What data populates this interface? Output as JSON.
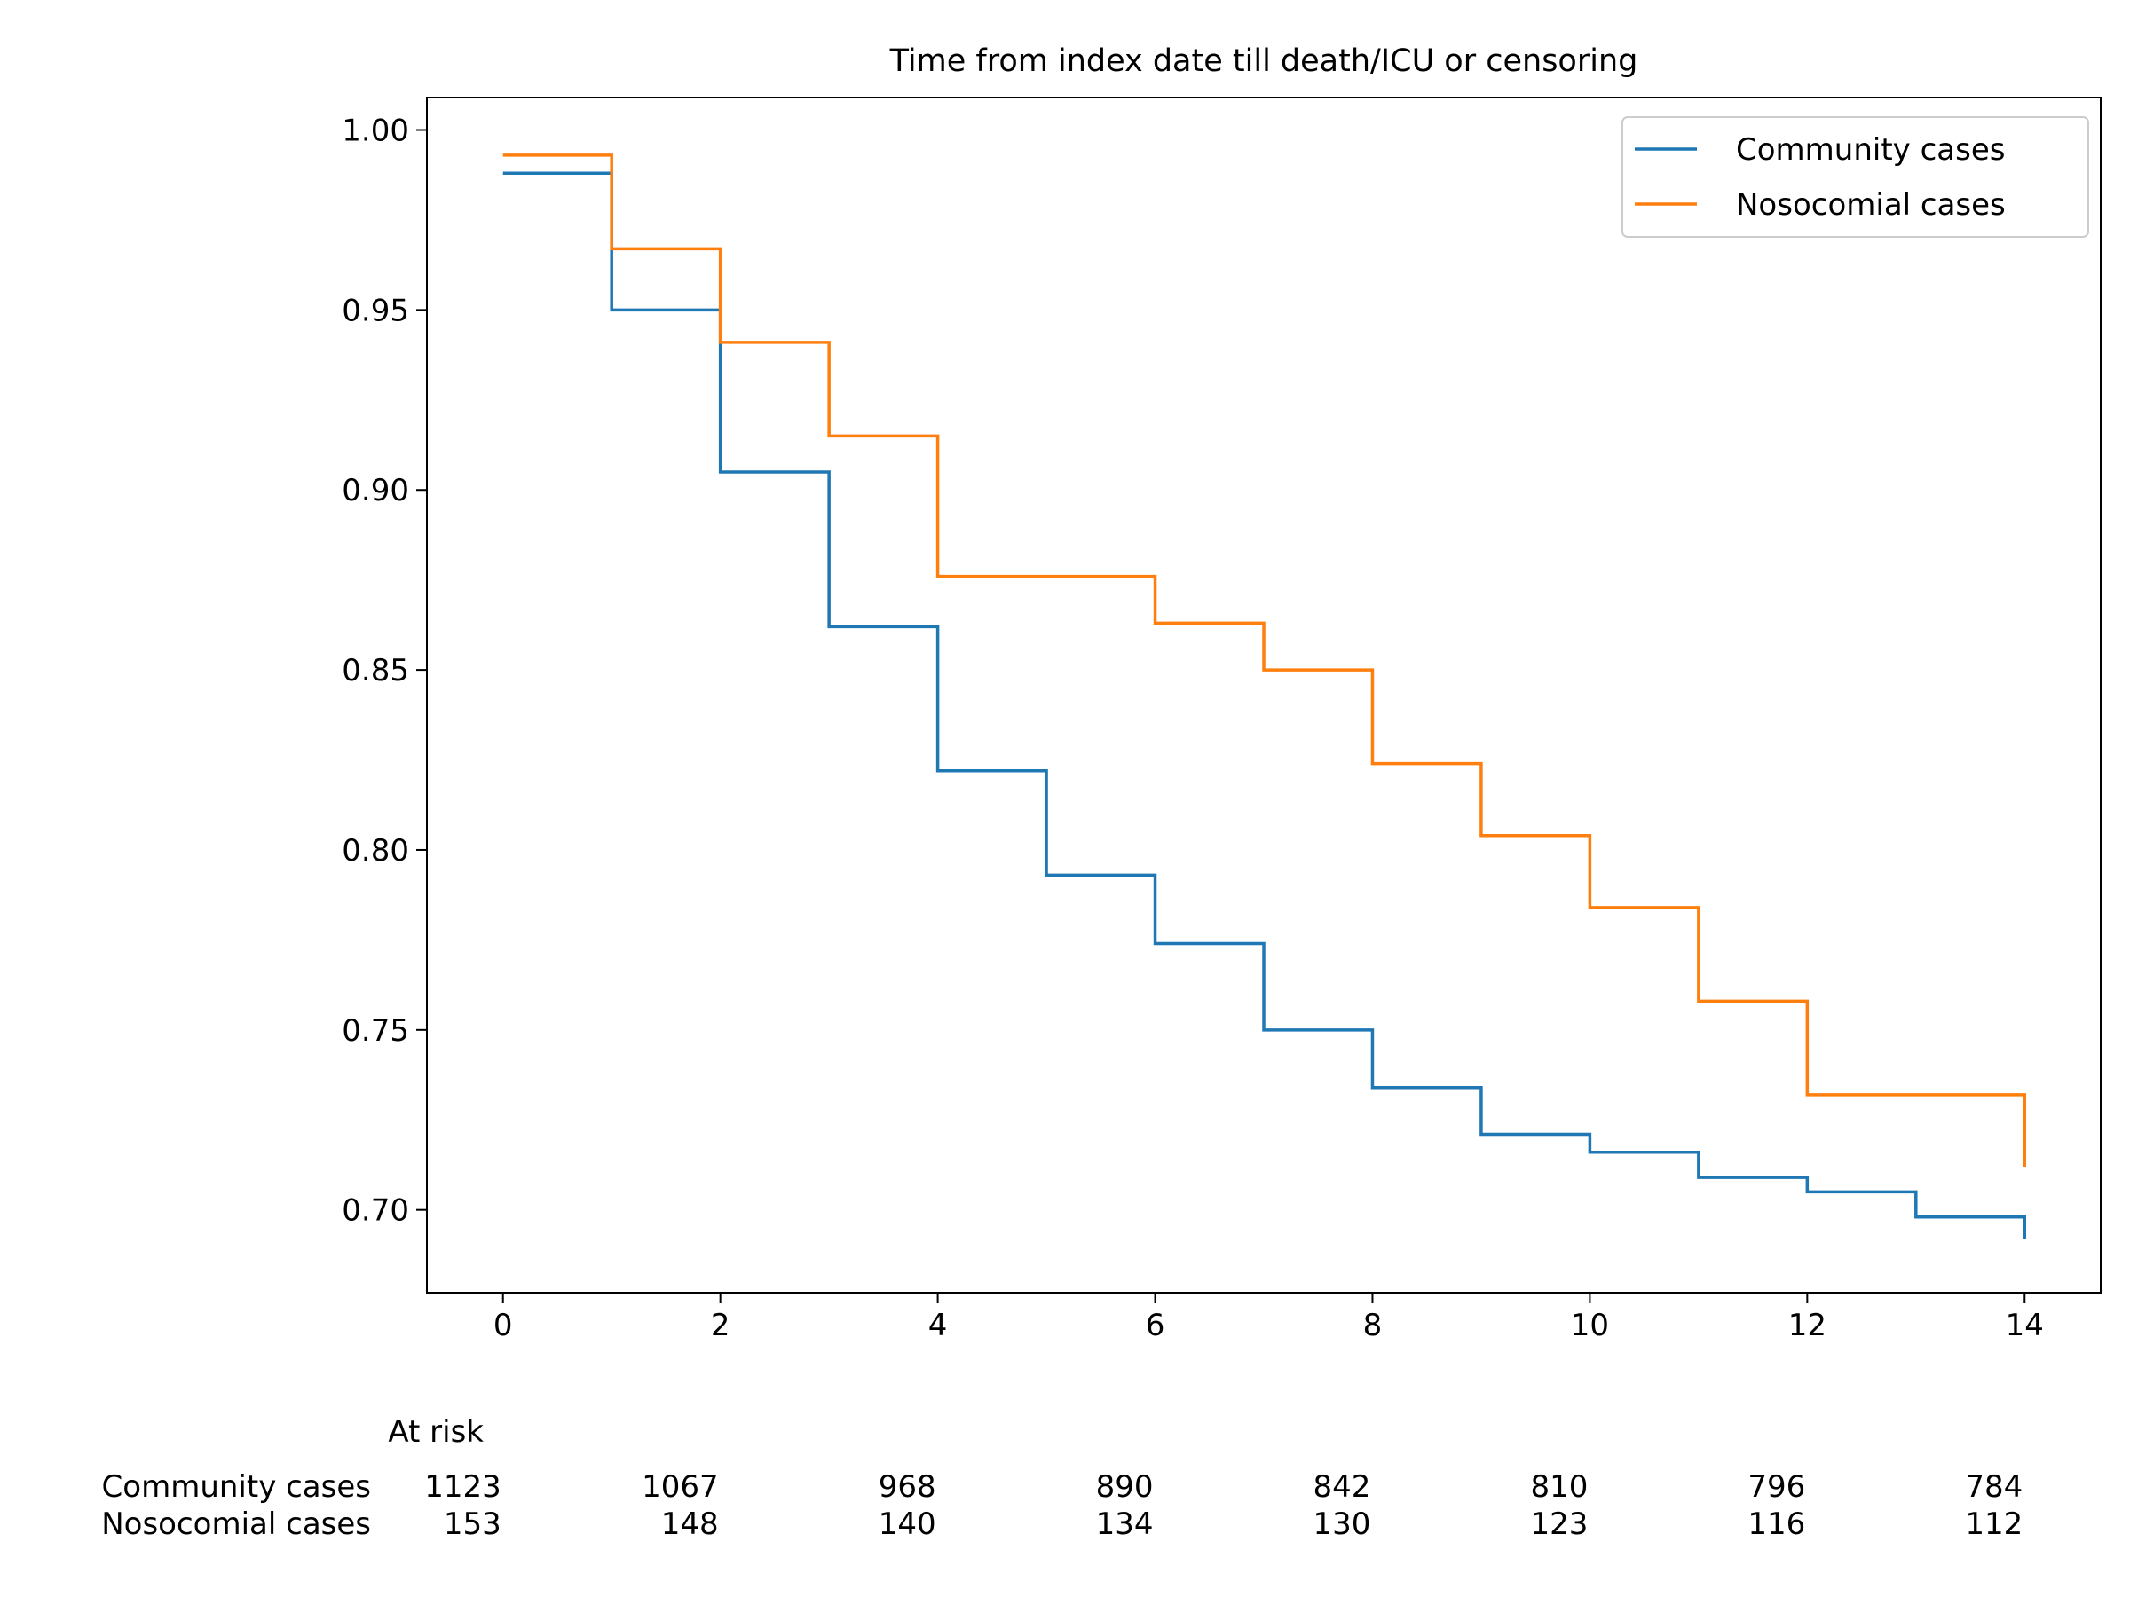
{
  "chart_data": {
    "type": "line",
    "title": "Time from index date till death/ICU or censoring",
    "xlabel": "",
    "ylabel": "",
    "xlim": [
      -0.7,
      14.7
    ],
    "ylim": [
      0.677,
      1.009
    ],
    "xticks": [
      0,
      2,
      4,
      6,
      8,
      10,
      12,
      14
    ],
    "yticks": [
      0.7,
      0.75,
      0.8,
      0.85,
      0.9,
      0.95,
      1.0
    ],
    "ytick_labels": [
      "0.70",
      "0.75",
      "0.80",
      "0.85",
      "0.90",
      "0.95",
      "1.00"
    ],
    "grid": false,
    "legend_position": "top-right",
    "step": "post",
    "series": [
      {
        "name": "Community cases",
        "color": "#1f77b4",
        "x": [
          0,
          1,
          2,
          3,
          4,
          5,
          6,
          7,
          8,
          9,
          10,
          11,
          12,
          13,
          14,
          14
        ],
        "y": [
          0.988,
          0.95,
          0.905,
          0.862,
          0.822,
          0.793,
          0.774,
          0.75,
          0.734,
          0.721,
          0.716,
          0.709,
          0.705,
          0.698,
          0.698,
          0.692
        ]
      },
      {
        "name": "Nosocomial cases",
        "color": "#ff7f0e",
        "x": [
          0,
          1,
          2,
          3,
          4,
          5,
          6,
          7,
          8,
          9,
          10,
          11,
          12,
          13,
          14,
          14
        ],
        "y": [
          0.993,
          0.967,
          0.941,
          0.915,
          0.876,
          0.876,
          0.863,
          0.85,
          0.824,
          0.804,
          0.784,
          0.758,
          0.732,
          0.732,
          0.732,
          0.712
        ]
      }
    ],
    "at_risk": {
      "title": "At risk",
      "times": [
        0,
        2,
        4,
        6,
        8,
        10,
        12,
        14
      ],
      "rows": [
        {
          "label": "Community cases",
          "values": [
            "1123",
            "1067",
            "968",
            "890",
            "842",
            "810",
            "796",
            "784"
          ]
        },
        {
          "label": "Nosocomial cases",
          "values": [
            "153",
            "148",
            "140",
            "134",
            "130",
            "123",
            "116",
            "112"
          ]
        }
      ]
    }
  }
}
